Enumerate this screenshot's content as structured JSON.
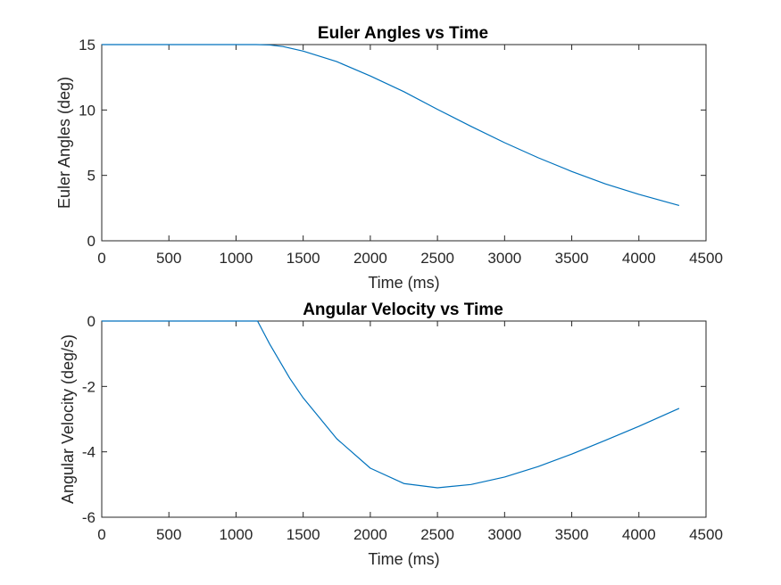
{
  "chart_data": [
    {
      "type": "line",
      "title": "Euler Angles vs Time",
      "xlabel": "Time (ms)",
      "ylabel": "Euler Angles (deg)",
      "xlim": [
        0,
        4500
      ],
      "ylim": [
        0,
        15
      ],
      "xticks": [
        0,
        500,
        1000,
        1500,
        2000,
        2500,
        3000,
        3500,
        4000,
        4500
      ],
      "yticks": [
        0,
        5,
        10,
        15
      ],
      "grid": false,
      "color": "#0072BD",
      "series": [
        {
          "x": [
            0,
            500,
            1000,
            1150,
            1250,
            1350,
            1500,
            1750,
            2000,
            2250,
            2500,
            2750,
            3000,
            3250,
            3500,
            3750,
            4000,
            4300
          ],
          "values": [
            15,
            15,
            15,
            15,
            14.97,
            14.85,
            14.5,
            13.7,
            12.6,
            11.4,
            10.05,
            8.75,
            7.5,
            6.35,
            5.3,
            4.35,
            3.55,
            2.7
          ]
        }
      ]
    },
    {
      "type": "line",
      "title": "Angular Velocity vs Time",
      "xlabel": "Time (ms)",
      "ylabel": "Angular Velocity (deg/s)",
      "xlim": [
        0,
        4500
      ],
      "ylim": [
        -6,
        0
      ],
      "xticks": [
        0,
        500,
        1000,
        1500,
        2000,
        2500,
        3000,
        3500,
        4000,
        4500
      ],
      "yticks": [
        -6,
        -4,
        -2,
        0
      ],
      "grid": false,
      "color": "#0072BD",
      "series": [
        {
          "x": [
            0,
            500,
            1000,
            1160,
            1250,
            1400,
            1500,
            1750,
            2000,
            2250,
            2500,
            2750,
            3000,
            3250,
            3500,
            3750,
            4000,
            4300
          ],
          "values": [
            0,
            0,
            0,
            0,
            -0.7,
            -1.75,
            -2.35,
            -3.6,
            -4.5,
            -4.97,
            -5.1,
            -5.0,
            -4.77,
            -4.45,
            -4.07,
            -3.65,
            -3.22,
            -2.67
          ]
        }
      ]
    }
  ]
}
